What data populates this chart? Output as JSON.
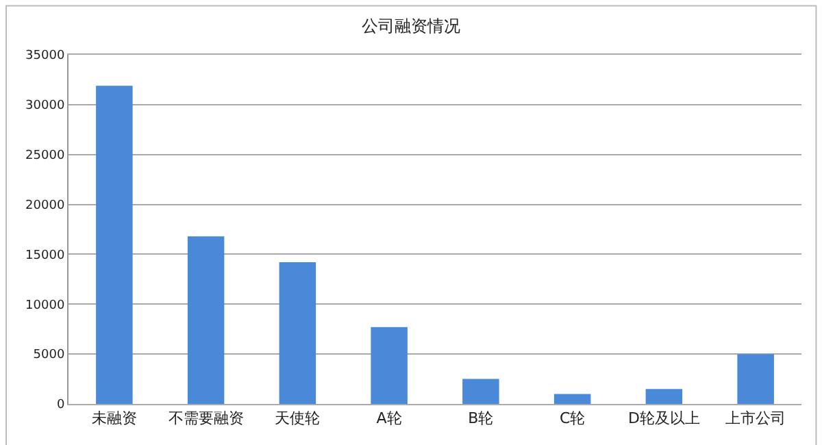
{
  "chart_data": {
    "type": "bar",
    "title": "公司融资情况",
    "categories": [
      "未融资",
      "不需要融资",
      "天使轮",
      "A轮",
      "B轮",
      "C轮",
      "D轮及以上",
      "上市公司"
    ],
    "values": [
      31900,
      16800,
      14200,
      7700,
      2500,
      1000,
      1500,
      5000
    ],
    "color": "#4a88d8",
    "ylim": [
      0,
      35000
    ],
    "yticks": [
      0,
      5000,
      10000,
      15000,
      20000,
      25000,
      30000,
      35000
    ],
    "grid": "y"
  }
}
